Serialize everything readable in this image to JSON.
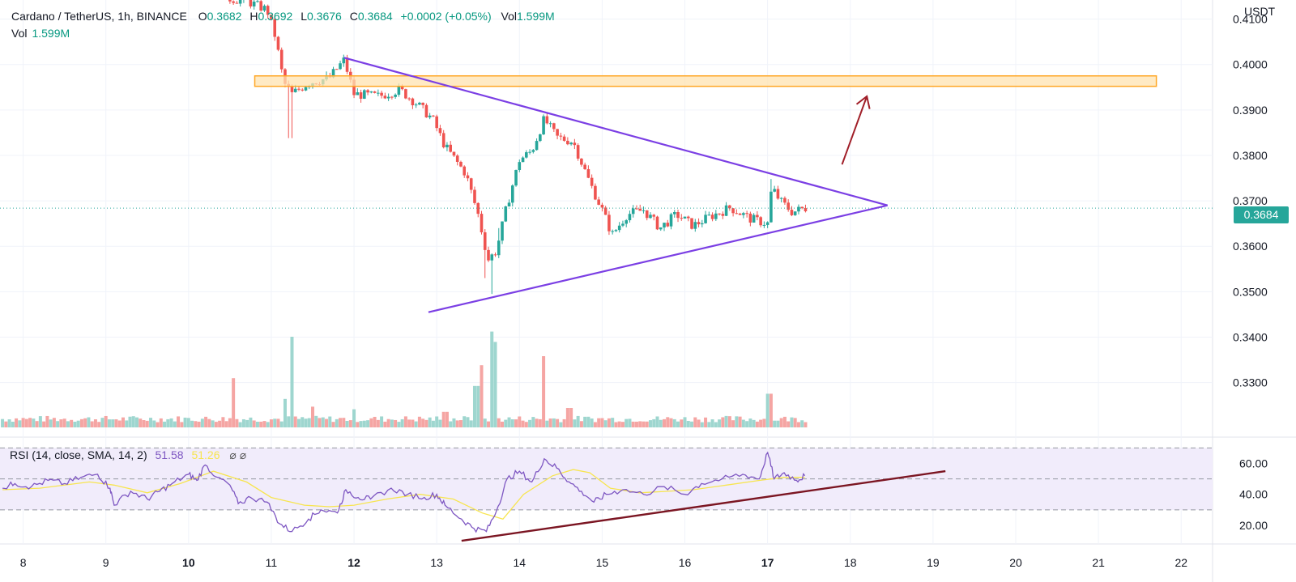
{
  "header": {
    "symbol": "Cardano / TetherUS, 1h, BINANCE",
    "o_label": "O",
    "o_value": "0.3682",
    "h_label": "H",
    "h_value": "0.3692",
    "l_label": "L",
    "l_value": "0.3676",
    "c_label": "C",
    "c_value": "0.3684",
    "change": "+0.0002 (+0.05%)",
    "vol_label": "Vol",
    "vol_value": "1.599M"
  },
  "volume_legend": {
    "label": "Vol",
    "value": "1.599M"
  },
  "rsi_legend": {
    "label": "RSI (14, close, SMA, 14, 2)",
    "rsi_value": "51.58",
    "sma_value": "51.26",
    "icons": "⌀ ⌀"
  },
  "axis": {
    "currency": "USDT",
    "current_price": "0.3684"
  },
  "colors": {
    "up": "#26a69a",
    "down": "#ef5350",
    "vol_up": "#9ed6cf",
    "vol_down": "#f5a5a3",
    "triangle": "#7b3fe4",
    "zone_fill": "#ffe3b0",
    "zone_stroke": "#ffa726",
    "arrow": "#a01e28",
    "rsi_line": "#7e57c2",
    "rsi_sma": "#f7e54f",
    "rsi_band": "#f1ecfb",
    "rsi_trend": "#7b1522"
  },
  "chart_data": {
    "type": "candlestick",
    "x_axis_labels": [
      "8",
      "9",
      "10",
      "11",
      "12",
      "13",
      "14",
      "15",
      "16",
      "17",
      "18",
      "19",
      "20",
      "21",
      "22"
    ],
    "bold_labels": [
      "10",
      "12",
      "17"
    ],
    "price_axis": {
      "range": [
        0.318,
        0.4142
      ],
      "ticks": [
        "0.4100",
        "0.4000",
        "0.3900",
        "0.3800",
        "0.3700",
        "0.3600",
        "0.3500",
        "0.3400",
        "0.3300"
      ]
    },
    "rsi_axis": {
      "range": [
        9,
        77
      ],
      "ticks": [
        "60.00",
        "40.00",
        "20.00"
      ],
      "band": [
        30,
        70
      ],
      "midline": 50
    },
    "time_range_days": [
      7.72,
      22.36
    ],
    "last_price": 0.3684,
    "price_path": [
      [
        10.5,
        0.4145
      ],
      [
        10.7,
        0.414
      ],
      [
        10.95,
        0.412
      ],
      [
        11.05,
        0.406
      ],
      [
        11.15,
        0.396
      ],
      [
        11.25,
        0.3935
      ],
      [
        11.45,
        0.396
      ],
      [
        11.7,
        0.397
      ],
      [
        11.88,
        0.401
      ],
      [
        12.0,
        0.3935
      ],
      [
        12.3,
        0.393
      ],
      [
        12.55,
        0.3945
      ],
      [
        12.75,
        0.3915
      ],
      [
        12.95,
        0.388
      ],
      [
        13.1,
        0.382
      ],
      [
        13.35,
        0.376
      ],
      [
        13.5,
        0.367
      ],
      [
        13.62,
        0.357
      ],
      [
        13.72,
        0.359
      ],
      [
        13.85,
        0.369
      ],
      [
        14.0,
        0.379
      ],
      [
        14.15,
        0.381
      ],
      [
        14.3,
        0.388
      ],
      [
        14.45,
        0.384
      ],
      [
        14.65,
        0.383
      ],
      [
        14.85,
        0.374
      ],
      [
        15.0,
        0.368
      ],
      [
        15.12,
        0.3625
      ],
      [
        15.3,
        0.367
      ],
      [
        15.5,
        0.368
      ],
      [
        15.7,
        0.364
      ],
      [
        15.9,
        0.367
      ],
      [
        16.1,
        0.3645
      ],
      [
        16.3,
        0.3665
      ],
      [
        16.55,
        0.3685
      ],
      [
        16.8,
        0.366
      ],
      [
        17.0,
        0.365
      ],
      [
        17.05,
        0.373
      ],
      [
        17.15,
        0.37
      ],
      [
        17.3,
        0.3675
      ],
      [
        17.45,
        0.3684
      ]
    ],
    "wick_spikes": [
      [
        11.23,
        0.3838
      ],
      [
        13.58,
        0.353
      ],
      [
        13.66,
        0.3495
      ],
      [
        13.75,
        0.364
      ],
      [
        17.03,
        0.3748
      ]
    ],
    "volume_spikes": [
      [
        10.54,
        0.38
      ],
      [
        11.24,
        0.7
      ],
      [
        11.18,
        0.22
      ],
      [
        13.48,
        0.32
      ],
      [
        13.55,
        0.48
      ],
      [
        13.67,
        0.74
      ],
      [
        13.72,
        0.66
      ],
      [
        14.3,
        0.55
      ],
      [
        17.02,
        0.26
      ],
      [
        11.5,
        0.16
      ],
      [
        12.0,
        0.14
      ],
      [
        13.1,
        0.12
      ],
      [
        14.6,
        0.15
      ]
    ],
    "rsi_path": [
      [
        7.75,
        44
      ],
      [
        7.9,
        47
      ],
      [
        8.1,
        45
      ],
      [
        8.3,
        49
      ],
      [
        8.5,
        47
      ],
      [
        8.7,
        51
      ],
      [
        8.9,
        53
      ],
      [
        9.05,
        44
      ],
      [
        9.1,
        33
      ],
      [
        9.3,
        42
      ],
      [
        9.5,
        37
      ],
      [
        9.65,
        42
      ],
      [
        9.8,
        47
      ],
      [
        10.0,
        53
      ],
      [
        10.1,
        49
      ],
      [
        10.2,
        59
      ],
      [
        10.35,
        51
      ],
      [
        10.5,
        46
      ],
      [
        10.6,
        34
      ],
      [
        10.75,
        38
      ],
      [
        10.95,
        35
      ],
      [
        11.1,
        21
      ],
      [
        11.25,
        16
      ],
      [
        11.45,
        24
      ],
      [
        11.6,
        30
      ],
      [
        11.8,
        28
      ],
      [
        11.9,
        43
      ],
      [
        12.05,
        38
      ],
      [
        12.2,
        37
      ],
      [
        12.45,
        44
      ],
      [
        12.65,
        40
      ],
      [
        12.85,
        38
      ],
      [
        13.0,
        40
      ],
      [
        13.1,
        33
      ],
      [
        13.3,
        24
      ],
      [
        13.45,
        18
      ],
      [
        13.6,
        16
      ],
      [
        13.72,
        29
      ],
      [
        13.85,
        50
      ],
      [
        14.0,
        55
      ],
      [
        14.15,
        48
      ],
      [
        14.3,
        63
      ],
      [
        14.45,
        57
      ],
      [
        14.6,
        48
      ],
      [
        14.75,
        42
      ],
      [
        14.9,
        35
      ],
      [
        15.05,
        40
      ],
      [
        15.25,
        43
      ],
      [
        15.5,
        40
      ],
      [
        15.75,
        45
      ],
      [
        16.0,
        40
      ],
      [
        16.2,
        47
      ],
      [
        16.45,
        50
      ],
      [
        16.7,
        53
      ],
      [
        16.9,
        50
      ],
      [
        17.0,
        67
      ],
      [
        17.08,
        50
      ],
      [
        17.2,
        54
      ],
      [
        17.35,
        49
      ],
      [
        17.45,
        52
      ]
    ],
    "rsi_sma_path": [
      [
        7.75,
        43
      ],
      [
        8.2,
        44
      ],
      [
        8.8,
        48
      ],
      [
        9.1,
        46
      ],
      [
        9.5,
        41
      ],
      [
        9.9,
        47
      ],
      [
        10.3,
        55
      ],
      [
        10.7,
        48
      ],
      [
        11.0,
        38
      ],
      [
        11.4,
        33
      ],
      [
        11.7,
        32
      ],
      [
        12.0,
        33
      ],
      [
        12.4,
        37
      ],
      [
        12.8,
        40
      ],
      [
        13.2,
        37
      ],
      [
        13.55,
        28
      ],
      [
        13.8,
        24
      ],
      [
        14.05,
        40
      ],
      [
        14.4,
        52
      ],
      [
        14.65,
        56
      ],
      [
        14.85,
        54
      ],
      [
        15.1,
        44
      ],
      [
        15.45,
        41
      ],
      [
        15.8,
        42
      ],
      [
        16.1,
        43
      ],
      [
        16.5,
        46
      ],
      [
        16.9,
        49
      ],
      [
        17.2,
        51
      ],
      [
        17.45,
        51
      ]
    ],
    "drawings": {
      "triangle_upper": [
        [
          11.88,
          0.4015
        ],
        [
          18.45,
          0.369
        ]
      ],
      "triangle_lower": [
        [
          12.9,
          0.3455
        ],
        [
          18.45,
          0.369
        ]
      ],
      "resistance_zone": [
        [
          10.8,
          0.3975
        ],
        [
          21.7,
          0.3952
        ]
      ],
      "breakout_arrow": [
        [
          17.9,
          0.378
        ],
        [
          18.2,
          0.393
        ]
      ],
      "rsi_trendline": [
        [
          13.3,
          10
        ],
        [
          19.15,
          55
        ]
      ]
    }
  }
}
